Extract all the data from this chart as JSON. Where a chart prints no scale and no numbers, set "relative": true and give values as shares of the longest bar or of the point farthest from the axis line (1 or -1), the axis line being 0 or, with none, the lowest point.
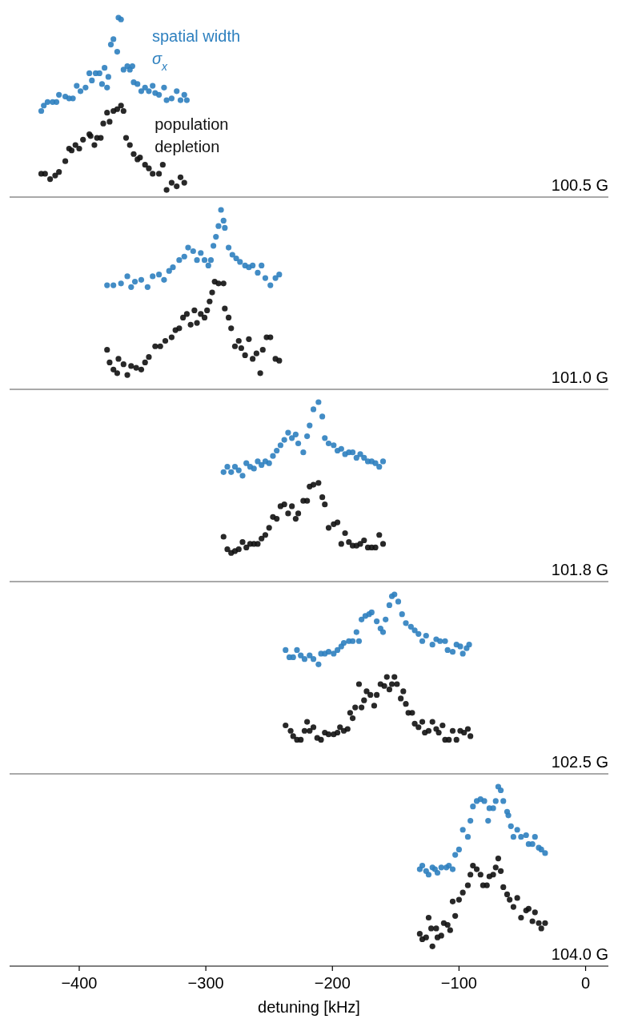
{
  "chart_data": [
    {
      "type": "scatter",
      "relative": true,
      "xlim": [
        -455,
        18
      ],
      "tick_labels": false,
      "marker": "circle",
      "annotations": [
        "100.5 G"
      ],
      "series": [
        {
          "name": "spatial width σ$_{x}$",
          "color": "#2e80bf",
          "x": [
            -430,
            -428,
            -425,
            -421,
            -418,
            -416,
            -411,
            -408,
            -405,
            -402,
            -399,
            -395,
            -392,
            -390,
            -387,
            -384,
            -382,
            -380,
            -378,
            -377,
            -375,
            -373,
            -370,
            -369,
            -367,
            -365,
            -362,
            -360,
            -358,
            -357,
            -354,
            -351,
            -348,
            -345,
            -342,
            -340,
            -337,
            -333,
            -331,
            -327,
            -323,
            -320,
            -317,
            -315
          ],
          "values": [
            0.48,
            0.51,
            0.53,
            0.53,
            0.53,
            0.57,
            0.56,
            0.55,
            0.55,
            0.62,
            0.59,
            0.61,
            0.69,
            0.65,
            0.69,
            0.69,
            0.63,
            0.72,
            0.61,
            0.67,
            0.85,
            0.88,
            0.81,
            1,
            0.99,
            0.71,
            0.73,
            0.71,
            0.73,
            0.64,
            0.63,
            0.59,
            0.61,
            0.59,
            0.62,
            0.58,
            0.57,
            0.61,
            0.54,
            0.55,
            0.59,
            0.54,
            0.57,
            0.54
          ]
        },
        {
          "name": "population depletion",
          "color": "#111111",
          "x": [
            -430,
            -427,
            -423,
            -419,
            -416,
            -411,
            -408,
            -406,
            -403,
            -400,
            -397,
            -392,
            -391,
            -388,
            -386,
            -383,
            -381,
            -378,
            -376,
            -373,
            -370,
            -367,
            -365,
            -363,
            -360,
            -357,
            -354,
            -352,
            -348,
            -345,
            -342,
            -337,
            -334,
            -331,
            -327,
            -323,
            -320,
            -317
          ],
          "values": [
            0.13,
            0.13,
            0.1,
            0.12,
            0.14,
            0.2,
            0.27,
            0.26,
            0.29,
            0.27,
            0.32,
            0.35,
            0.34,
            0.29,
            0.33,
            0.33,
            0.41,
            0.47,
            0.42,
            0.48,
            0.49,
            0.51,
            0.48,
            0.33,
            0.29,
            0.24,
            0.21,
            0.22,
            0.18,
            0.16,
            0.13,
            0.13,
            0.18,
            0.04,
            0.08,
            0.06,
            0.11,
            0.08
          ]
        }
      ]
    },
    {
      "type": "scatter",
      "relative": true,
      "xlim": [
        -455,
        18
      ],
      "tick_labels": false,
      "marker": "circle",
      "annotations": [
        "101.0 G"
      ],
      "series": [
        {
          "color": "#2e80bf",
          "x": [
            -378,
            -373,
            -367,
            -362,
            -359,
            -356,
            -351,
            -346,
            -342,
            -337,
            -333,
            -329,
            -326,
            -321,
            -317,
            -314,
            -310,
            -307,
            -304,
            -301,
            -298,
            -296,
            -294,
            -292,
            -290,
            -288,
            -286,
            -285,
            -282,
            -279,
            -276,
            -273,
            -269,
            -266,
            -263,
            -259,
            -256,
            -253,
            -249,
            -245,
            -242
          ],
          "values": [
            0.58,
            0.58,
            0.59,
            0.63,
            0.57,
            0.6,
            0.61,
            0.57,
            0.63,
            0.64,
            0.61,
            0.66,
            0.68,
            0.72,
            0.74,
            0.79,
            0.77,
            0.72,
            0.76,
            0.72,
            0.69,
            0.72,
            0.8,
            0.85,
            0.91,
            1,
            0.94,
            0.9,
            0.79,
            0.75,
            0.73,
            0.71,
            0.69,
            0.68,
            0.69,
            0.65,
            0.69,
            0.62,
            0.58,
            0.62,
            0.64
          ]
        },
        {
          "color": "#111111",
          "x": [
            -378,
            -376,
            -373,
            -370,
            -369,
            -365,
            -362,
            -359,
            -355,
            -351,
            -348,
            -345,
            -340,
            -336,
            -332,
            -327,
            -324,
            -321,
            -318,
            -315,
            -312,
            -309,
            -307,
            -304,
            -301,
            -299,
            -297,
            -295,
            -293,
            -290,
            -286,
            -285,
            -282,
            -280,
            -277,
            -274,
            -272,
            -269,
            -266,
            -263,
            -260,
            -257,
            -255,
            -252,
            -249,
            -245,
            -242
          ],
          "values": [
            0.22,
            0.15,
            0.11,
            0.09,
            0.17,
            0.14,
            0.08,
            0.13,
            0.12,
            0.11,
            0.15,
            0.18,
            0.24,
            0.24,
            0.27,
            0.29,
            0.33,
            0.34,
            0.4,
            0.42,
            0.36,
            0.44,
            0.37,
            0.42,
            0.4,
            0.44,
            0.49,
            0.54,
            0.6,
            0.59,
            0.59,
            0.45,
            0.4,
            0.34,
            0.24,
            0.27,
            0.23,
            0.19,
            0.28,
            0.17,
            0.2,
            0.09,
            0.22,
            0.29,
            0.29,
            0.17,
            0.16
          ]
        }
      ]
    },
    {
      "type": "scatter",
      "relative": true,
      "xlim": [
        -455,
        18
      ],
      "tick_labels": false,
      "marker": "circle",
      "annotations": [
        "101.8 G"
      ],
      "series": [
        {
          "color": "#2e80bf",
          "x": [
            -286,
            -283,
            -280,
            -277,
            -274,
            -271,
            -268,
            -265,
            -262,
            -259,
            -256,
            -253,
            -250,
            -247,
            -244,
            -241,
            -238,
            -235,
            -232,
            -229,
            -227,
            -223,
            -220,
            -218,
            -215,
            -211,
            -208,
            -206,
            -203,
            -199,
            -196,
            -193,
            -190,
            -187,
            -184,
            -181,
            -178,
            -175,
            -172,
            -169,
            -166,
            -163,
            -160
          ],
          "values": [
            0.61,
            0.64,
            0.61,
            0.64,
            0.62,
            0.59,
            0.66,
            0.64,
            0.63,
            0.67,
            0.65,
            0.67,
            0.66,
            0.7,
            0.73,
            0.76,
            0.79,
            0.83,
            0.8,
            0.82,
            0.77,
            0.72,
            0.81,
            0.87,
            0.96,
            1,
            0.92,
            0.8,
            0.77,
            0.76,
            0.73,
            0.74,
            0.71,
            0.72,
            0.72,
            0.69,
            0.71,
            0.69,
            0.67,
            0.67,
            0.66,
            0.64,
            0.67
          ]
        },
        {
          "color": "#111111",
          "x": [
            -286,
            -283,
            -280,
            -277,
            -274,
            -271,
            -268,
            -265,
            -262,
            -259,
            -256,
            -253,
            -250,
            -247,
            -244,
            -241,
            -238,
            -235,
            -232,
            -229,
            -227,
            -223,
            -220,
            -218,
            -215,
            -211,
            -208,
            -206,
            -203,
            -199,
            -196,
            -193,
            -190,
            -187,
            -184,
            -181,
            -178,
            -175,
            -172,
            -169,
            -166,
            -163,
            -160
          ],
          "values": [
            0.25,
            0.18,
            0.16,
            0.17,
            0.18,
            0.22,
            0.19,
            0.21,
            0.21,
            0.21,
            0.24,
            0.26,
            0.3,
            0.36,
            0.35,
            0.42,
            0.43,
            0.38,
            0.42,
            0.35,
            0.38,
            0.45,
            0.45,
            0.53,
            0.54,
            0.55,
            0.47,
            0.43,
            0.3,
            0.32,
            0.33,
            0.21,
            0.27,
            0.22,
            0.2,
            0.2,
            0.21,
            0.23,
            0.19,
            0.19,
            0.19,
            0.26,
            0.21
          ]
        }
      ]
    },
    {
      "type": "scatter",
      "relative": true,
      "xlim": [
        -455,
        18
      ],
      "tick_labels": false,
      "marker": "circle",
      "annotations": [
        "102.5 G"
      ],
      "series": [
        {
          "color": "#2e80bf",
          "x": [
            -237,
            -234,
            -231,
            -228,
            -225,
            -222,
            -218,
            -215,
            -211,
            -209,
            -206,
            -203,
            -199,
            -196,
            -193,
            -191,
            -187,
            -184,
            -181,
            -179,
            -177,
            -174,
            -171,
            -169,
            -165,
            -162,
            -160,
            -158,
            -155,
            -153,
            -151,
            -148,
            -145,
            -142,
            -138,
            -135,
            -132,
            -129,
            -126,
            -121,
            -118,
            -115,
            -111,
            -109,
            -105,
            -102,
            -99,
            -97,
            -94,
            -92
          ],
          "values": [
            0.69,
            0.65,
            0.65,
            0.69,
            0.66,
            0.64,
            0.66,
            0.64,
            0.61,
            0.67,
            0.67,
            0.68,
            0.67,
            0.69,
            0.71,
            0.73,
            0.74,
            0.74,
            0.79,
            0.74,
            0.86,
            0.88,
            0.89,
            0.9,
            0.85,
            0.81,
            0.79,
            0.86,
            0.94,
            0.99,
            1,
            0.96,
            0.89,
            0.84,
            0.82,
            0.8,
            0.78,
            0.74,
            0.77,
            0.72,
            0.75,
            0.74,
            0.74,
            0.69,
            0.68,
            0.72,
            0.71,
            0.67,
            0.7,
            0.72
          ]
        },
        {
          "color": "#111111",
          "x": [
            -237,
            -233,
            -231,
            -228,
            -225,
            -222,
            -220,
            -218,
            -215,
            -212,
            -209,
            -206,
            -203,
            -199,
            -196,
            -194,
            -191,
            -188,
            -186,
            -184,
            -182,
            -179,
            -177,
            -175,
            -173,
            -170,
            -167,
            -165,
            -162,
            -159,
            -157,
            -155,
            -153,
            -151,
            -149,
            -146,
            -144,
            -142,
            -140,
            -137,
            -135,
            -132,
            -129,
            -127,
            -124,
            -121,
            -118,
            -116,
            -113,
            -111,
            -108,
            -105,
            -102,
            -99,
            -96,
            -93,
            -91
          ],
          "values": [
            0.27,
            0.24,
            0.21,
            0.19,
            0.19,
            0.24,
            0.29,
            0.24,
            0.26,
            0.2,
            0.19,
            0.23,
            0.22,
            0.22,
            0.23,
            0.26,
            0.24,
            0.25,
            0.34,
            0.31,
            0.37,
            0.5,
            0.37,
            0.41,
            0.46,
            0.44,
            0.38,
            0.44,
            0.5,
            0.49,
            0.54,
            0.47,
            0.5,
            0.54,
            0.5,
            0.42,
            0.46,
            0.39,
            0.34,
            0.34,
            0.28,
            0.26,
            0.29,
            0.23,
            0.24,
            0.29,
            0.25,
            0.23,
            0.27,
            0.19,
            0.19,
            0.24,
            0.19,
            0.24,
            0.23,
            0.25,
            0.21
          ]
        }
      ]
    },
    {
      "type": "scatter",
      "relative": true,
      "xlim": [
        -455,
        18
      ],
      "xticks": [
        -400,
        -300,
        -200,
        -100,
        0
      ],
      "tick_labels": "x",
      "marker": "circle",
      "xlabel": "detuning [kHz]",
      "annotations": [
        "104.0 G"
      ],
      "series": [
        {
          "color": "#2e80bf",
          "x": [
            -131,
            -129,
            -126,
            -124,
            -121,
            -119,
            -117,
            -114,
            -110,
            -108,
            -105,
            -103,
            -100,
            -97,
            -93,
            -91,
            -89,
            -86,
            -83,
            -80,
            -77,
            -76,
            -73,
            -71,
            -69,
            -67,
            -65,
            -62,
            -61,
            -59,
            -57,
            -54,
            -51,
            -47,
            -45,
            -42,
            -40,
            -37,
            -35,
            -32
          ],
          "values": [
            0.54,
            0.56,
            0.53,
            0.51,
            0.55,
            0.54,
            0.52,
            0.55,
            0.55,
            0.56,
            0.54,
            0.62,
            0.65,
            0.76,
            0.72,
            0.81,
            0.89,
            0.92,
            0.93,
            0.92,
            0.81,
            0.88,
            0.88,
            0.92,
            1,
            0.98,
            0.92,
            0.86,
            0.84,
            0.78,
            0.72,
            0.76,
            0.72,
            0.73,
            0.68,
            0.68,
            0.72,
            0.66,
            0.65,
            0.63
          ]
        },
        {
          "color": "#111111",
          "x": [
            -131,
            -129,
            -126,
            -124,
            -122,
            -121,
            -118,
            -117,
            -114,
            -112,
            -109,
            -107,
            -105,
            -103,
            -100,
            -97,
            -93,
            -91,
            -89,
            -86,
            -83,
            -81,
            -78,
            -76,
            -73,
            -71,
            -69,
            -67,
            -65,
            -62,
            -60,
            -57,
            -54,
            -51,
            -47,
            -45,
            -42,
            -40,
            -37,
            -35,
            -32
          ],
          "values": [
            0.18,
            0.15,
            0.16,
            0.27,
            0.21,
            0.11,
            0.21,
            0.16,
            0.17,
            0.24,
            0.23,
            0.2,
            0.36,
            0.28,
            0.37,
            0.41,
            0.45,
            0.51,
            0.56,
            0.54,
            0.51,
            0.45,
            0.45,
            0.5,
            0.51,
            0.55,
            0.6,
            0.53,
            0.44,
            0.4,
            0.37,
            0.33,
            0.38,
            0.27,
            0.31,
            0.32,
            0.25,
            0.3,
            0.24,
            0.21,
            0.24
          ]
        }
      ]
    }
  ]
}
